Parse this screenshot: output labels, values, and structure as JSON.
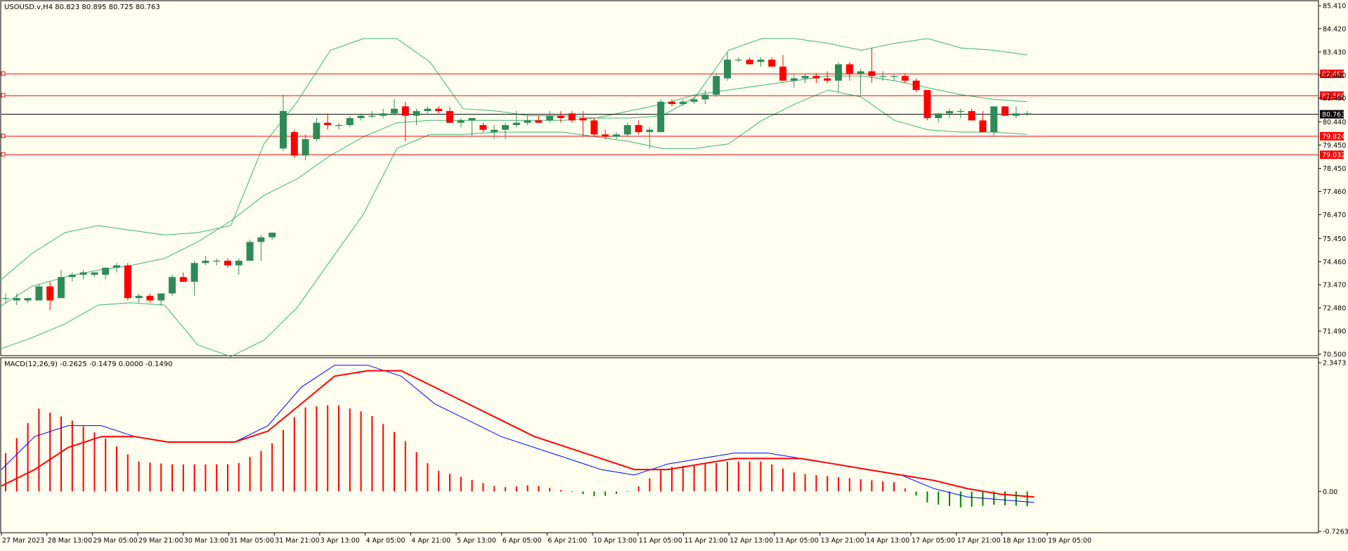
{
  "main_panel": {
    "header": "USOUSD.v,H4  80.823 80.895 80.725 80.763",
    "price_axis_ticks": [
      85.41,
      84.42,
      83.43,
      82.44,
      81.45,
      80.44,
      79.45,
      78.45,
      77.46,
      76.47,
      75.45,
      74.46,
      73.47,
      72.48,
      71.49,
      70.5
    ],
    "price_axis_tick_labels": [
      "85.410",
      "84.420",
      "83.430",
      "82.440",
      "81.450",
      "80.440",
      "79.450",
      "78.450",
      "77.460",
      "76.470",
      "75.450",
      "74.460",
      "73.470",
      "72.480",
      "71.490",
      "70.500"
    ],
    "current_price": {
      "value": 80.763,
      "label": "80.763",
      "color": "#000000"
    },
    "horizontal_lines": [
      {
        "value": 82.492,
        "label": "82.492",
        "color": "#ff0000"
      },
      {
        "value": 81.56,
        "label": "81.560",
        "color": "#ff0000"
      },
      {
        "value": 79.824,
        "label": "79.824",
        "color": "#ff0000"
      },
      {
        "value": 79.032,
        "label": "79.032",
        "color": "#ff0000"
      }
    ]
  },
  "macd_panel": {
    "header": "MACD(12,26,9) -0.2625 -0.1479 0.0000 -0.1490",
    "axis_tick_labels": [
      "2.3473",
      "0.00",
      "-0.7263"
    ]
  },
  "x_axis_labels": [
    "27 Mar 2023",
    "28 Mar 13:00",
    "29 Mar 05:00",
    "29 Mar 21:00",
    "30 Mar 13:00",
    "31 Mar 05:00",
    "31 Mar 21:00",
    "3 Apr 13:00",
    "4 Apr 05:00",
    "4 Apr 21:00",
    "5 Apr 13:00",
    "6 Apr 05:00",
    "6 Apr 21:00",
    "10 Apr 13:00",
    "11 Apr 05:00",
    "11 Apr 21:00",
    "12 Apr 13:00",
    "13 Apr 05:00",
    "13 Apr 21:00",
    "14 Apr 13:00",
    "17 Apr 05:00",
    "17 Apr 21:00",
    "18 Apr 13:00",
    "19 Apr 05:00"
  ],
  "colors": {
    "background": "#fffff0",
    "bull_candle": "#2e8b57",
    "bear_candle": "#ff0000",
    "bollinger": "#3cb371",
    "macd_line": "#0000ff",
    "signal_line": "#ff0000",
    "hist_positive": "#ff0000",
    "hist_negative": "#008000"
  },
  "chart_data": {
    "type": "candlestick",
    "symbol": "USOUSD.v",
    "timeframe": "H4",
    "candles": [
      {
        "o": 72.9,
        "h": 73.1,
        "l": 72.7,
        "c": 72.9
      },
      {
        "o": 72.8,
        "h": 73.1,
        "l": 72.6,
        "c": 72.9
      },
      {
        "o": 72.8,
        "h": 72.9,
        "l": 72.7,
        "c": 72.9
      },
      {
        "o": 72.8,
        "h": 73.5,
        "l": 72.8,
        "c": 73.4
      },
      {
        "o": 73.4,
        "h": 73.6,
        "l": 72.4,
        "c": 72.8
      },
      {
        "o": 72.9,
        "h": 74.1,
        "l": 72.9,
        "c": 73.8
      },
      {
        "o": 73.8,
        "h": 74.0,
        "l": 73.6,
        "c": 73.9
      },
      {
        "o": 73.9,
        "h": 74.1,
        "l": 73.7,
        "c": 74.0
      },
      {
        "o": 73.9,
        "h": 74.0,
        "l": 73.8,
        "c": 74.0
      },
      {
        "o": 73.9,
        "h": 74.2,
        "l": 73.7,
        "c": 74.2
      },
      {
        "o": 74.2,
        "h": 74.4,
        "l": 74.0,
        "c": 74.3
      },
      {
        "o": 74.3,
        "h": 74.4,
        "l": 72.8,
        "c": 72.9
      },
      {
        "o": 72.9,
        "h": 73.1,
        "l": 72.7,
        "c": 73.0
      },
      {
        "o": 73.0,
        "h": 73.1,
        "l": 72.7,
        "c": 72.8
      },
      {
        "o": 72.8,
        "h": 73.1,
        "l": 72.6,
        "c": 73.1
      },
      {
        "o": 73.1,
        "h": 73.9,
        "l": 73.0,
        "c": 73.8
      },
      {
        "o": 73.8,
        "h": 74.0,
        "l": 73.6,
        "c": 73.6
      },
      {
        "o": 73.6,
        "h": 74.5,
        "l": 73.0,
        "c": 74.4
      },
      {
        "o": 74.4,
        "h": 74.7,
        "l": 74.3,
        "c": 74.5
      },
      {
        "o": 74.5,
        "h": 74.6,
        "l": 74.3,
        "c": 74.5
      },
      {
        "o": 74.5,
        "h": 74.6,
        "l": 74.2,
        "c": 74.3
      },
      {
        "o": 74.3,
        "h": 74.6,
        "l": 73.9,
        "c": 74.5
      },
      {
        "o": 74.5,
        "h": 75.4,
        "l": 74.5,
        "c": 75.3
      },
      {
        "o": 75.3,
        "h": 75.6,
        "l": 74.5,
        "c": 75.5
      },
      {
        "o": 75.5,
        "h": 75.7,
        "l": 75.4,
        "c": 75.7
      },
      {
        "o": 79.3,
        "h": 81.6,
        "l": 79.2,
        "c": 80.9
      },
      {
        "o": 80.0,
        "h": 80.1,
        "l": 78.9,
        "c": 79.0
      },
      {
        "o": 79.0,
        "h": 79.9,
        "l": 78.8,
        "c": 79.7
      },
      {
        "o": 79.7,
        "h": 80.6,
        "l": 79.6,
        "c": 80.4
      },
      {
        "o": 80.4,
        "h": 80.8,
        "l": 80.1,
        "c": 80.3
      },
      {
        "o": 80.3,
        "h": 80.4,
        "l": 80.1,
        "c": 80.3
      },
      {
        "o": 80.3,
        "h": 80.7,
        "l": 80.2,
        "c": 80.6
      },
      {
        "o": 80.6,
        "h": 80.8,
        "l": 80.5,
        "c": 80.7
      },
      {
        "o": 80.7,
        "h": 80.9,
        "l": 80.6,
        "c": 80.7
      },
      {
        "o": 80.7,
        "h": 81.0,
        "l": 80.6,
        "c": 80.8
      },
      {
        "o": 80.8,
        "h": 81.4,
        "l": 80.7,
        "c": 81.0
      },
      {
        "o": 81.1,
        "h": 81.3,
        "l": 79.6,
        "c": 80.7
      },
      {
        "o": 80.7,
        "h": 81.0,
        "l": 80.3,
        "c": 80.9
      },
      {
        "o": 80.9,
        "h": 81.1,
        "l": 80.8,
        "c": 81.0
      },
      {
        "o": 81.0,
        "h": 81.1,
        "l": 80.8,
        "c": 80.9
      },
      {
        "o": 80.9,
        "h": 81.1,
        "l": 80.4,
        "c": 80.4
      },
      {
        "o": 80.4,
        "h": 80.6,
        "l": 80.2,
        "c": 80.5
      },
      {
        "o": 80.5,
        "h": 80.6,
        "l": 79.8,
        "c": 80.6
      },
      {
        "o": 80.3,
        "h": 80.4,
        "l": 80.0,
        "c": 80.1
      },
      {
        "o": 80.0,
        "h": 80.3,
        "l": 79.7,
        "c": 80.1
      },
      {
        "o": 80.1,
        "h": 80.4,
        "l": 79.7,
        "c": 80.3
      },
      {
        "o": 80.3,
        "h": 80.9,
        "l": 80.2,
        "c": 80.4
      },
      {
        "o": 80.4,
        "h": 80.7,
        "l": 80.3,
        "c": 80.5
      },
      {
        "o": 80.5,
        "h": 80.7,
        "l": 80.4,
        "c": 80.4
      },
      {
        "o": 80.5,
        "h": 80.9,
        "l": 80.4,
        "c": 80.7
      },
      {
        "o": 80.7,
        "h": 80.9,
        "l": 80.4,
        "c": 80.6
      },
      {
        "o": 80.8,
        "h": 80.9,
        "l": 80.4,
        "c": 80.5
      },
      {
        "o": 80.6,
        "h": 80.9,
        "l": 79.8,
        "c": 80.5
      },
      {
        "o": 80.5,
        "h": 80.6,
        "l": 79.8,
        "c": 79.9
      },
      {
        "o": 79.9,
        "h": 80.1,
        "l": 79.7,
        "c": 79.8
      },
      {
        "o": 79.8,
        "h": 80.0,
        "l": 79.7,
        "c": 79.9
      },
      {
        "o": 79.9,
        "h": 80.4,
        "l": 79.8,
        "c": 80.3
      },
      {
        "o": 80.3,
        "h": 80.5,
        "l": 79.9,
        "c": 80.0
      },
      {
        "o": 80.0,
        "h": 80.2,
        "l": 79.3,
        "c": 80.1
      },
      {
        "o": 80.0,
        "h": 81.4,
        "l": 80.0,
        "c": 81.3
      },
      {
        "o": 81.3,
        "h": 81.4,
        "l": 81.1,
        "c": 81.2
      },
      {
        "o": 81.2,
        "h": 81.4,
        "l": 81.1,
        "c": 81.3
      },
      {
        "o": 81.3,
        "h": 81.5,
        "l": 81.2,
        "c": 81.4
      },
      {
        "o": 81.4,
        "h": 81.8,
        "l": 81.2,
        "c": 81.6
      },
      {
        "o": 81.6,
        "h": 82.5,
        "l": 81.5,
        "c": 82.4
      },
      {
        "o": 82.3,
        "h": 83.4,
        "l": 82.2,
        "c": 83.1
      },
      {
        "o": 83.1,
        "h": 83.2,
        "l": 83.0,
        "c": 83.1
      },
      {
        "o": 83.1,
        "h": 83.2,
        "l": 82.9,
        "c": 82.9
      },
      {
        "o": 83.0,
        "h": 83.2,
        "l": 82.8,
        "c": 83.1
      },
      {
        "o": 83.1,
        "h": 83.2,
        "l": 82.9,
        "c": 82.8
      },
      {
        "o": 82.8,
        "h": 83.3,
        "l": 82.2,
        "c": 82.2
      },
      {
        "o": 82.2,
        "h": 82.5,
        "l": 81.9,
        "c": 82.3
      },
      {
        "o": 82.3,
        "h": 82.5,
        "l": 82.1,
        "c": 82.4
      },
      {
        "o": 82.4,
        "h": 82.5,
        "l": 82.1,
        "c": 82.3
      },
      {
        "o": 82.3,
        "h": 82.6,
        "l": 82.1,
        "c": 82.2
      },
      {
        "o": 82.2,
        "h": 83.0,
        "l": 81.7,
        "c": 82.9
      },
      {
        "o": 82.9,
        "h": 83.0,
        "l": 82.2,
        "c": 82.5
      },
      {
        "o": 82.5,
        "h": 82.7,
        "l": 81.6,
        "c": 82.6
      },
      {
        "o": 82.6,
        "h": 83.6,
        "l": 82.1,
        "c": 82.4
      },
      {
        "o": 82.4,
        "h": 82.6,
        "l": 82.2,
        "c": 82.4
      },
      {
        "o": 82.4,
        "h": 82.5,
        "l": 82.2,
        "c": 82.4
      },
      {
        "o": 82.4,
        "h": 82.5,
        "l": 82.1,
        "c": 82.2
      },
      {
        "o": 82.2,
        "h": 82.3,
        "l": 81.7,
        "c": 81.8
      },
      {
        "o": 81.8,
        "h": 81.8,
        "l": 80.5,
        "c": 80.6
      },
      {
        "o": 80.6,
        "h": 80.8,
        "l": 80.4,
        "c": 80.8
      },
      {
        "o": 80.8,
        "h": 81.0,
        "l": 80.6,
        "c": 80.9
      },
      {
        "o": 80.9,
        "h": 81.0,
        "l": 80.6,
        "c": 80.9
      },
      {
        "o": 80.9,
        "h": 81.0,
        "l": 80.5,
        "c": 80.5
      },
      {
        "o": 80.5,
        "h": 80.9,
        "l": 80.0,
        "c": 80.0
      },
      {
        "o": 80.0,
        "h": 81.1,
        "l": 79.8,
        "c": 81.1
      },
      {
        "o": 81.1,
        "h": 81.1,
        "l": 80.7,
        "c": 80.7
      },
      {
        "o": 80.7,
        "h": 81.1,
        "l": 80.6,
        "c": 80.8
      },
      {
        "o": 80.8,
        "h": 80.9,
        "l": 80.7,
        "c": 80.8
      }
    ],
    "bollinger_bands": {
      "period": 20,
      "upper": [
        73.6,
        74.8,
        75.7,
        76.0,
        75.8,
        75.6,
        75.7,
        76.0,
        79.5,
        81.3,
        83.5,
        84.0,
        84.0,
        83.0,
        81.0,
        80.9,
        80.7,
        80.7,
        80.6,
        80.6,
        80.7,
        81.5,
        83.5,
        84.0,
        84.0,
        83.8,
        83.5,
        83.8,
        84.0,
        83.6,
        83.5,
        83.3
      ],
      "middle": [
        72.5,
        73.4,
        73.8,
        74.1,
        74.3,
        74.6,
        75.3,
        76.2,
        77.3,
        78.0,
        79.0,
        79.8,
        80.4,
        80.5,
        80.5,
        80.5,
        80.5,
        80.5,
        80.6,
        80.9,
        81.2,
        81.6,
        81.8,
        82.0,
        82.2,
        82.4,
        82.4,
        82.2,
        81.9,
        81.6,
        81.4,
        81.3
      ],
      "lower": [
        70.7,
        71.2,
        71.8,
        72.6,
        72.7,
        72.6,
        70.9,
        70.4,
        71.1,
        72.5,
        74.5,
        76.5,
        79.3,
        79.9,
        79.9,
        80.0,
        80.0,
        80.0,
        79.8,
        79.6,
        79.3,
        79.3,
        79.5,
        80.5,
        81.2,
        81.8,
        81.5,
        80.5,
        80.1,
        80.0,
        80.0,
        79.9
      ]
    },
    "macd": {
      "fast": 12,
      "slow": 26,
      "signal": 9,
      "macd_line": [
        0.4,
        1.0,
        1.2,
        1.2,
        1.0,
        0.9,
        0.9,
        0.9,
        1.2,
        1.9,
        2.3,
        2.3,
        2.1,
        1.6,
        1.3,
        1.0,
        0.8,
        0.6,
        0.4,
        0.3,
        0.5,
        0.6,
        0.7,
        0.7,
        0.6,
        0.5,
        0.4,
        0.3,
        0.05,
        -0.1,
        -0.15,
        -0.2
      ],
      "signal_line": [
        0.1,
        0.4,
        0.8,
        1.0,
        1.0,
        0.9,
        0.9,
        0.9,
        1.1,
        1.6,
        2.1,
        2.2,
        2.2,
        1.9,
        1.6,
        1.3,
        1.0,
        0.8,
        0.6,
        0.4,
        0.4,
        0.5,
        0.6,
        0.6,
        0.6,
        0.5,
        0.4,
        0.3,
        0.2,
        0.05,
        -0.05,
        -0.1
      ]
    },
    "title": "USOUSD.v,H4",
    "ylim": [
      70.5,
      85.41
    ],
    "grid": false
  }
}
